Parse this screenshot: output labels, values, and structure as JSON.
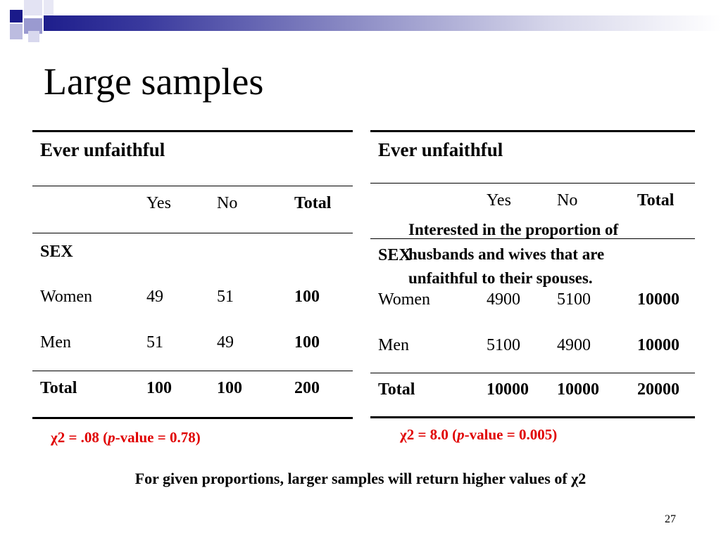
{
  "slide": {
    "title": "Large samples",
    "page_number": "27",
    "footer": "For given proportions, larger samples will return higher values of χ2",
    "callout": "Interested in the proportion of husbands and wives that are unfaithful to their spouses."
  },
  "left_table": {
    "header": "Ever unfaithful",
    "cols": [
      "Yes",
      "No",
      "Total"
    ],
    "group_label": "SEX",
    "rows": [
      {
        "label": "Women",
        "yes": "49",
        "no": "51",
        "total": "100"
      },
      {
        "label": "Men",
        "yes": "51",
        "no": "49",
        "total": "100"
      }
    ],
    "total_row": {
      "label": "Total",
      "yes": "100",
      "no": "100",
      "total": "200"
    },
    "stat": {
      "prefix": "χ2 = .08 (",
      "p": "p",
      "suffix": "-value = 0.78)"
    }
  },
  "right_table": {
    "header": "Ever unfaithful",
    "cols": [
      "Yes",
      "No",
      "Total"
    ],
    "group_label": "SEX",
    "rows": [
      {
        "label": "Women",
        "yes": "4900",
        "no": "5100",
        "total": "10000"
      },
      {
        "label": "Men",
        "yes": "5100",
        "no": "4900",
        "total": "10000"
      }
    ],
    "total_row": {
      "label": "Total",
      "yes": "10000",
      "no": "10000",
      "total": "20000"
    },
    "stat": {
      "prefix": "χ2 = 8.0 (",
      "p": "p",
      "suffix": "-value = 0.005)"
    }
  }
}
